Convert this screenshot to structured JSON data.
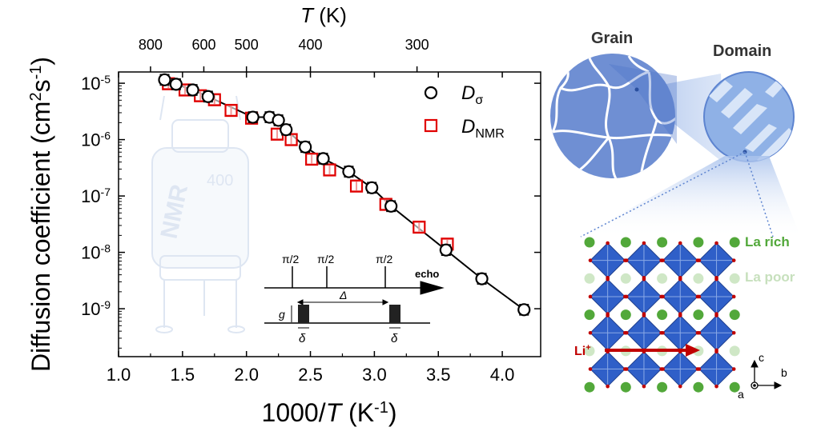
{
  "chart_data": {
    "type": "scatter",
    "x_label_parts": {
      "main": "1000/",
      "italic": "T",
      "unit": " (K",
      "sup": "-1",
      "close": ")"
    },
    "y_label_parts": {
      "main": "Diffusion coefficient (cm",
      "sup1": "2",
      "mid": "s",
      "sup2": "-1",
      "close": ")"
    },
    "top_label_parts": {
      "italic": "T",
      "unit": " (K)"
    },
    "xlim": [
      1.0,
      4.3
    ],
    "ylim_log10": [
      -9.85,
      -4.8
    ],
    "x_ticks": [
      "1.0",
      "1.5",
      "2.0",
      "2.5",
      "3.0",
      "3.5",
      "4.0"
    ],
    "y_ticks": [
      {
        "base": "10",
        "exp": "-5"
      },
      {
        "base": "10",
        "exp": "-6"
      },
      {
        "base": "10",
        "exp": "-7"
      },
      {
        "base": "10",
        "exp": "-8"
      },
      {
        "base": "10",
        "exp": "-9"
      }
    ],
    "top_ticks": [
      "800",
      "600",
      "500",
      "400",
      "300"
    ],
    "series": [
      {
        "name": "D_sigma",
        "legend_main": "D",
        "legend_sub": "σ",
        "color": "#000000",
        "marker": "circle",
        "points": [
          [
            1.36,
            1.15e-05
          ],
          [
            1.45,
            9.6e-06
          ],
          [
            1.58,
            7.6e-06
          ],
          [
            1.7,
            5.8e-06
          ],
          [
            2.05,
            2.5e-06
          ],
          [
            2.18,
            2.5e-06
          ],
          [
            2.25,
            2.2e-06
          ],
          [
            2.31,
            1.5e-06
          ],
          [
            2.46,
            7.4e-07
          ],
          [
            2.6,
            4.6e-07
          ],
          [
            2.8,
            2.7e-07
          ],
          [
            2.98,
            1.4e-07
          ],
          [
            3.13,
            6.6e-08
          ],
          [
            3.56,
            1.1e-08
          ],
          [
            3.84,
            3.4e-09
          ],
          [
            4.17,
            9.6e-10
          ]
        ]
      },
      {
        "name": "D_NMR",
        "legend_main": "D",
        "legend_sub": "NMR",
        "color": "#e00000",
        "marker": "square",
        "points": [
          [
            1.39,
            9.8e-06
          ],
          [
            1.52,
            7.6e-06
          ],
          [
            1.64,
            6e-06
          ],
          [
            1.75,
            5.1e-06
          ],
          [
            1.88,
            3.3e-06
          ],
          [
            2.04,
            2.4e-06
          ],
          [
            2.24,
            1.25e-06
          ],
          [
            2.35,
            1e-06
          ],
          [
            2.51,
            4.5e-07
          ],
          [
            2.65,
            2.9e-07
          ],
          [
            2.86,
            1.5e-07
          ],
          [
            3.09,
            7.1e-08
          ],
          [
            3.35,
            2.8e-08
          ],
          [
            3.57,
            1.4e-08
          ]
        ]
      }
    ],
    "inset_labels": {
      "pulse1": "π/2",
      "pulse2": "π/2",
      "pulse3": "π/2",
      "echo": "echo",
      "delta_big": "Δ",
      "g": "g",
      "delta_small_1": "δ",
      "delta_small_2": "δ"
    },
    "watermark_text": "NMR",
    "watermark_model": "400"
  },
  "schematic": {
    "grain_label": "Grain",
    "domain_label": "Domain",
    "la_rich": "La rich",
    "la_poor": "La poor",
    "li_label": "Li",
    "li_charge": "+",
    "axis_c": "c",
    "axis_b": "b",
    "axis_a": "a",
    "colors": {
      "grain_fill": "#6f8fd3",
      "domain_fill": "#8fb1e6",
      "octahedron": "#2f5fc8",
      "la_rich": "#52a83a",
      "la_poor": "#cfe7c6",
      "li_arrow": "#c00000"
    }
  }
}
